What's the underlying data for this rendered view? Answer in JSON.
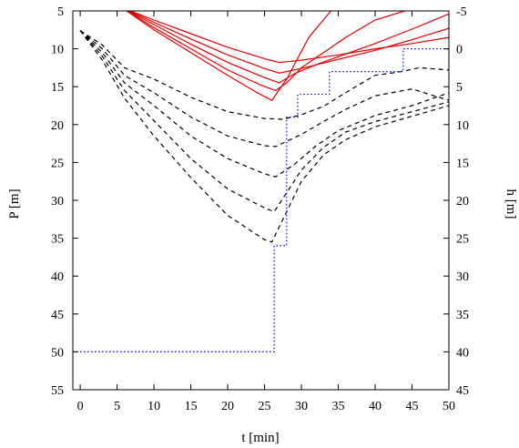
{
  "chart_data": {
    "type": "line",
    "xlabel": "t [min]",
    "ylabel": "P [m]",
    "y2label": "h [m]",
    "xlim": [
      -1,
      50
    ],
    "ylim": [
      55,
      5
    ],
    "y2lim": [
      45,
      -5
    ],
    "xticks": [
      0,
      5,
      10,
      15,
      20,
      25,
      30,
      35,
      40,
      45,
      50
    ],
    "yticks": [
      5,
      10,
      15,
      20,
      25,
      30,
      35,
      40,
      45,
      50,
      55
    ],
    "y2ticks": [
      -5,
      0,
      5,
      10,
      15,
      20,
      25,
      30,
      35,
      40,
      45
    ],
    "grid": false,
    "series": [
      {
        "style": "solid",
        "color": "#e00000",
        "axis": "left",
        "x": [
          6.3,
          10,
          15,
          20,
          24,
          26,
          28,
          31,
          34
        ],
        "y": [
          5,
          7.5,
          10.5,
          13.5,
          15.8,
          16.8,
          14,
          8.5,
          5
        ]
      },
      {
        "style": "solid",
        "color": "#e00000",
        "axis": "left",
        "x": [
          6.4,
          10,
          15,
          20,
          24.5,
          26.5,
          28,
          30,
          33,
          36,
          40,
          44
        ],
        "y": [
          5,
          7.2,
          10,
          12.8,
          14.8,
          15.5,
          14.5,
          12.5,
          10.5,
          8.5,
          6.2,
          5
        ]
      },
      {
        "style": "solid",
        "color": "#e00000",
        "axis": "left",
        "x": [
          6.5,
          10,
          15,
          20,
          25,
          27,
          29,
          32,
          36,
          40,
          45,
          50
        ],
        "y": [
          5,
          6.8,
          9.4,
          11.8,
          13.8,
          14.5,
          13.3,
          12.1,
          10.7,
          9.3,
          7.4,
          5.4
        ]
      },
      {
        "style": "solid",
        "color": "#e00000",
        "axis": "left",
        "x": [
          6.7,
          10,
          15,
          20,
          25,
          27,
          30,
          35,
          40,
          45,
          50
        ],
        "y": [
          5,
          6.5,
          8.7,
          10.8,
          12.6,
          13.2,
          12.6,
          11.4,
          10.2,
          8.8,
          7.3
        ]
      },
      {
        "style": "solid",
        "color": "#e00000",
        "axis": "left",
        "x": [
          6.8,
          10,
          15,
          20,
          25,
          27,
          30,
          35,
          40,
          45,
          50
        ],
        "y": [
          5,
          6.2,
          8,
          9.8,
          11.3,
          11.8,
          11.5,
          10.8,
          10,
          9.3,
          8.5
        ]
      },
      {
        "style": "dashed",
        "color": "#000000",
        "axis": "left",
        "x": [
          0,
          3,
          6,
          10,
          15,
          20,
          25,
          27.5,
          30,
          33,
          37,
          40,
          43,
          46,
          50
        ],
        "y": [
          7.6,
          9.5,
          12.5,
          14,
          16.4,
          18.3,
          19.2,
          19.3,
          18.7,
          17.6,
          15.2,
          13.5,
          13.1,
          12.5,
          12.8
        ]
      },
      {
        "style": "dashed",
        "color": "#000000",
        "axis": "left",
        "x": [
          0,
          3,
          6,
          10,
          15,
          20,
          25,
          26.5,
          30,
          33,
          36,
          40,
          45,
          50
        ],
        "y": [
          7.6,
          10,
          13.5,
          15.8,
          19,
          21.5,
          22.8,
          22.9,
          21.3,
          19.6,
          18,
          16.2,
          15.3,
          16.8
        ]
      },
      {
        "style": "dashed",
        "color": "#000000",
        "axis": "left",
        "x": [
          0,
          3,
          6,
          10,
          15,
          20,
          25,
          26.5,
          29,
          32,
          35,
          40,
          45,
          50
        ],
        "y": [
          7.6,
          10.5,
          14.5,
          17.5,
          21.5,
          24.5,
          26.5,
          26.9,
          25.3,
          22.8,
          20.8,
          18.8,
          17.5,
          15.8
        ]
      },
      {
        "style": "dashed",
        "color": "#000000",
        "axis": "left",
        "x": [
          0,
          3,
          6,
          10,
          15,
          20,
          25,
          26.3,
          28,
          30,
          33,
          36,
          40,
          45,
          50
        ],
        "y": [
          7.6,
          11,
          15.5,
          19.5,
          24.5,
          28.5,
          31,
          31.5,
          29,
          26,
          23,
          21,
          19.6,
          18.3,
          17
        ]
      },
      {
        "style": "dashed",
        "color": "#000000",
        "axis": "left",
        "x": [
          0,
          3,
          6,
          10,
          15,
          20,
          25,
          26,
          28,
          30,
          33,
          36,
          40,
          45,
          50
        ],
        "y": [
          7.6,
          11.5,
          16.5,
          21.5,
          27,
          32,
          35.2,
          35.5,
          31.5,
          27.5,
          24,
          22,
          20.3,
          18.9,
          17.5
        ]
      },
      {
        "style": "dotted",
        "color": "#0000cc",
        "axis": "right",
        "x": [
          -1,
          25,
          26.3,
          28,
          29.5,
          33.8,
          43.8,
          50
        ],
        "y": [
          40,
          40,
          26,
          9,
          6,
          3,
          0,
          0
        ],
        "step": true
      }
    ]
  }
}
